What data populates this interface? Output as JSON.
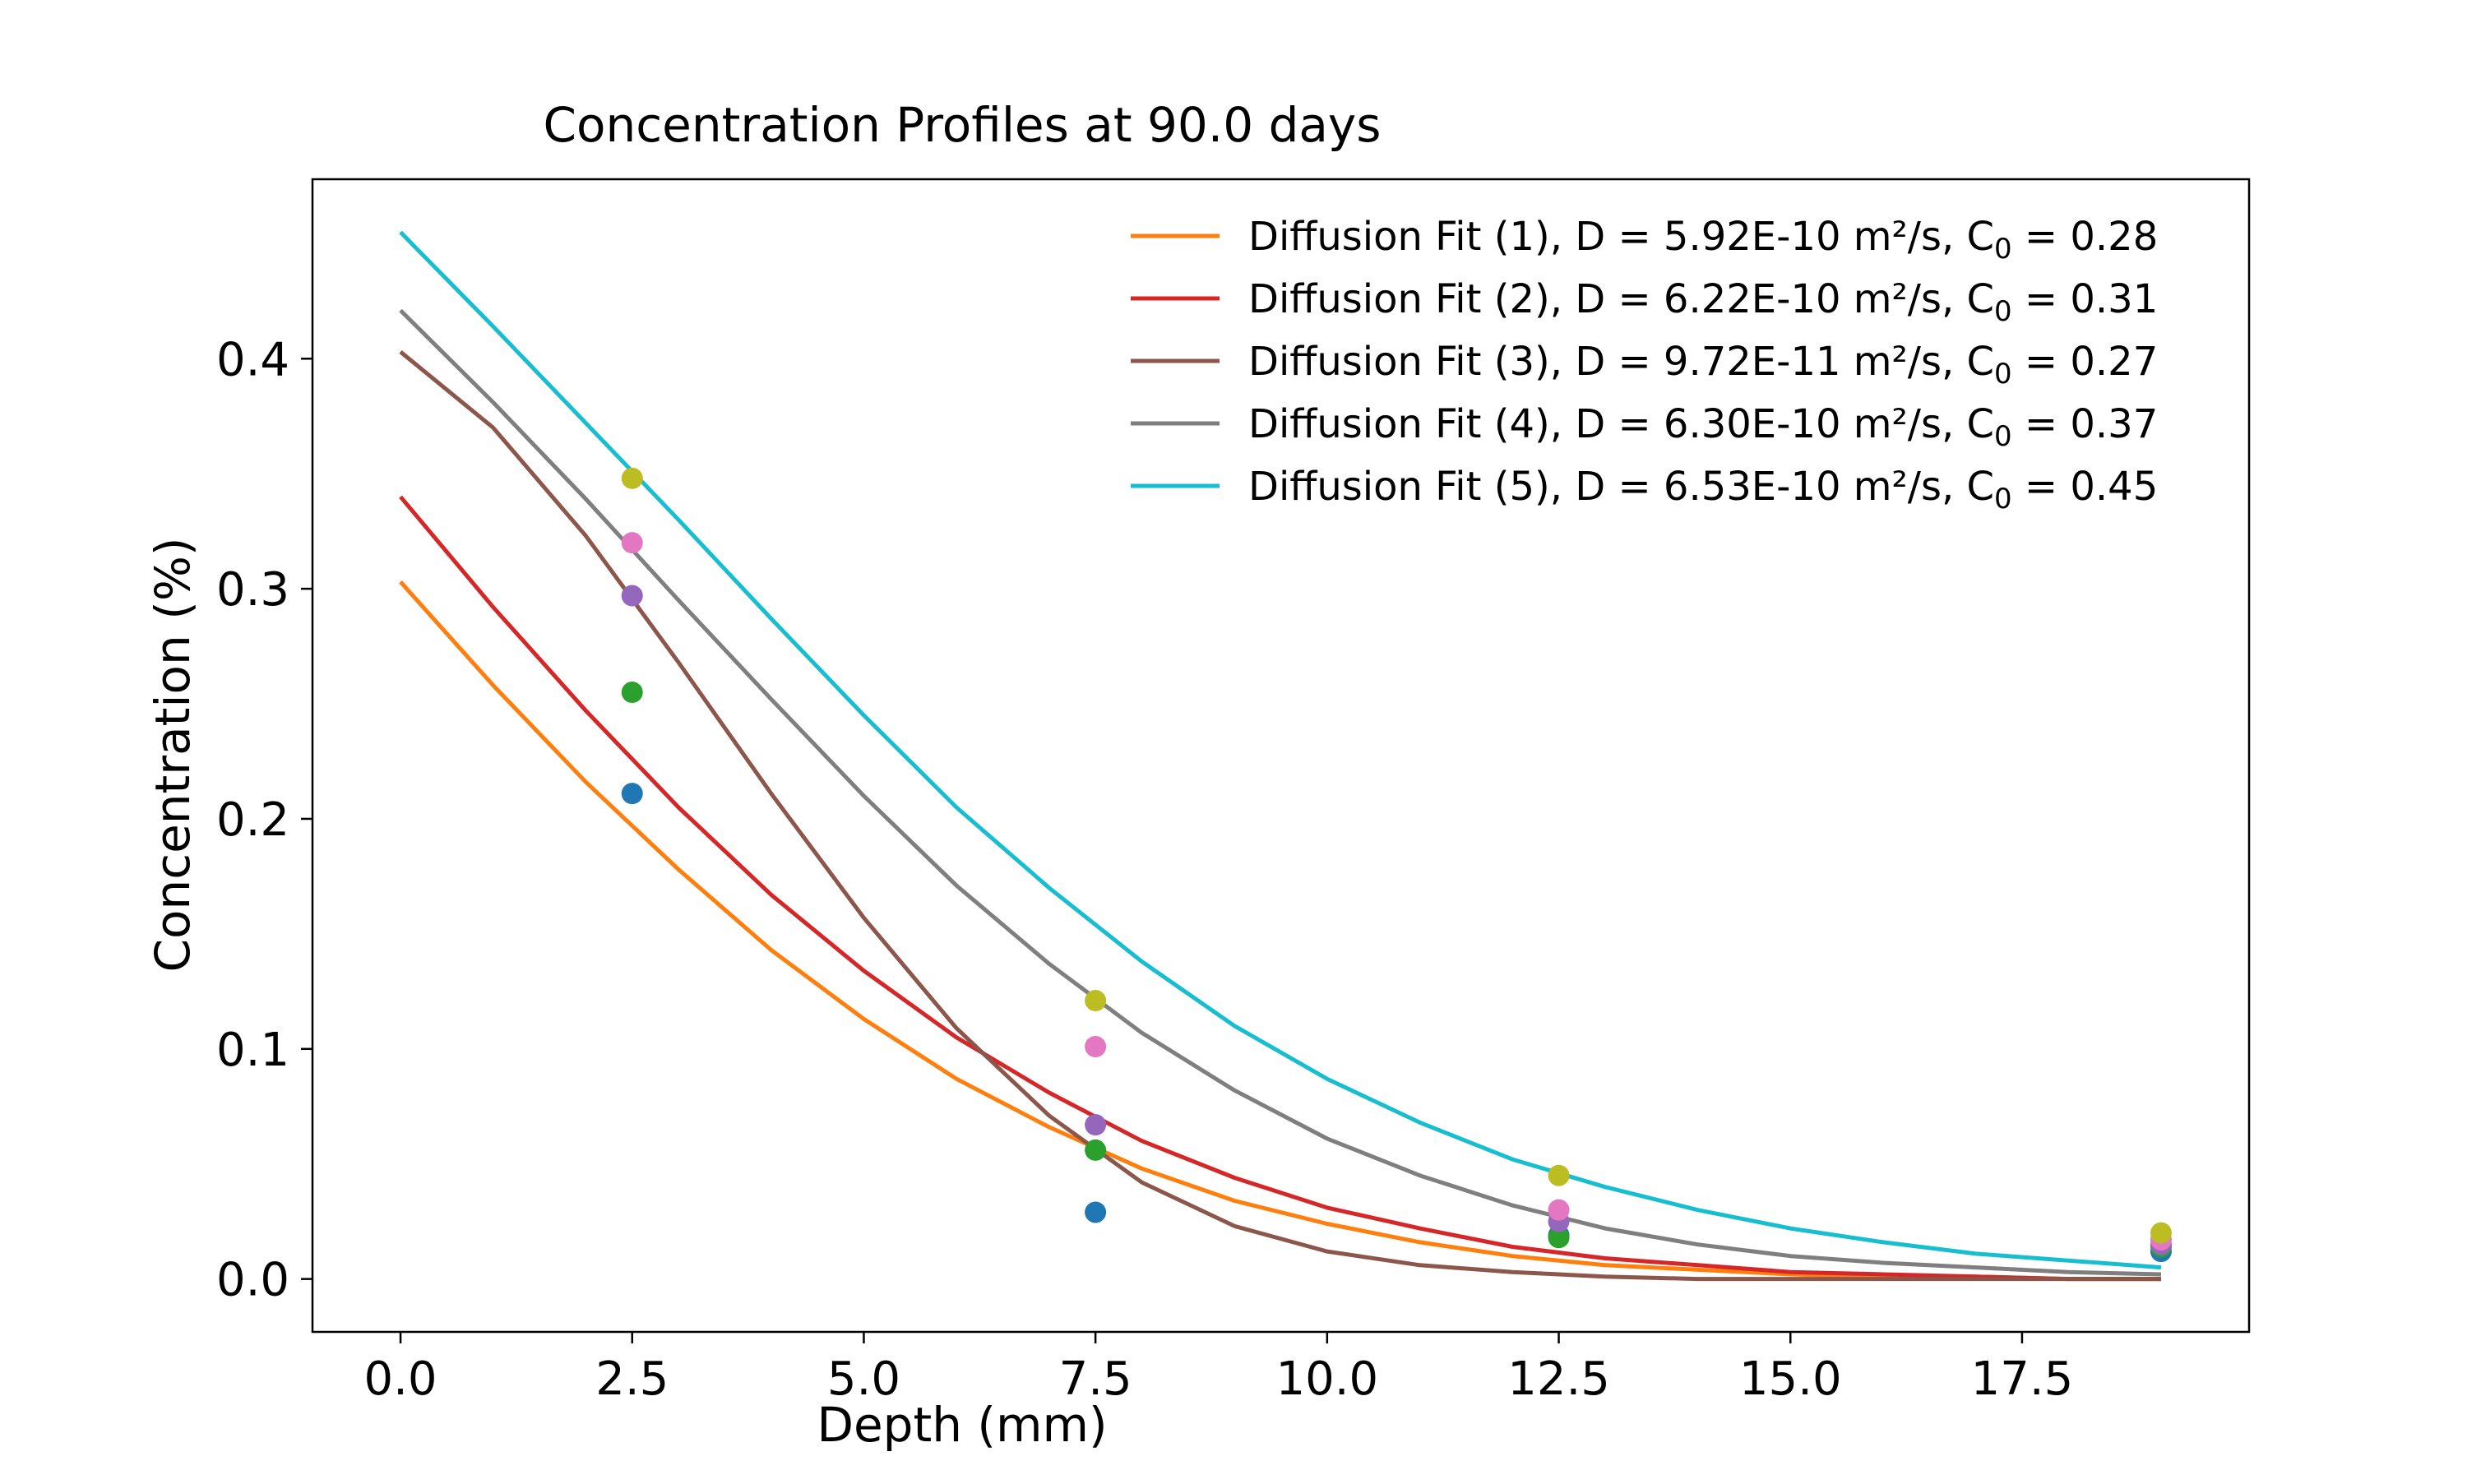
{
  "chart_data": {
    "type": "line",
    "title": "Concentration Profiles at 90.0 days",
    "xlabel": "Depth (mm)",
    "ylabel": "Concentration (%)",
    "xlim": [
      -0.95,
      19.95
    ],
    "ylim": [
      -0.023,
      0.478
    ],
    "xticks": [
      0.0,
      2.5,
      5.0,
      7.5,
      10.0,
      12.5,
      15.0,
      17.5
    ],
    "xtick_labels": [
      "0.0",
      "2.5",
      "5.0",
      "7.5",
      "10.0",
      "12.5",
      "15.0",
      "17.5"
    ],
    "yticks": [
      0.0,
      0.1,
      0.2,
      0.3,
      0.4
    ],
    "ytick_labels": [
      "0.0",
      "0.1",
      "0.2",
      "0.3",
      "0.4"
    ],
    "grid": false,
    "legend_position": "top-right",
    "series": [
      {
        "name": "Diffusion Fit (1), D = 5.92E-10 m²/s, C₀ = 0.28",
        "legend": {
          "prefix": "Diffusion Fit (1), D = 5.92E-10 m²/s, C",
          "subscript": "0",
          "suffix": " = 0.28"
        },
        "color": "#ff7f0e",
        "x": [
          0,
          1,
          2,
          3,
          4,
          5,
          6,
          7,
          8,
          9,
          10,
          11,
          12,
          13,
          14,
          15,
          16,
          17,
          18,
          19
        ],
        "y": [
          0.303,
          0.258,
          0.216,
          0.178,
          0.143,
          0.113,
          0.087,
          0.066,
          0.048,
          0.034,
          0.024,
          0.016,
          0.01,
          0.006,
          0.004,
          0.002,
          0.001,
          0.001,
          0.0,
          0.0
        ]
      },
      {
        "name": "Diffusion Fit (2), D = 6.22E-10 m²/s, C₀ = 0.31",
        "legend": {
          "prefix": "Diffusion Fit (2), D = 6.22E-10 m²/s, C",
          "subscript": "0",
          "suffix": " = 0.31"
        },
        "color": "#d62728",
        "x": [
          0,
          1,
          2,
          3,
          4,
          5,
          6,
          7,
          8,
          9,
          10,
          11,
          12,
          13,
          14,
          15,
          16,
          17,
          18,
          19
        ],
        "y": [
          0.34,
          0.292,
          0.247,
          0.205,
          0.167,
          0.134,
          0.105,
          0.081,
          0.06,
          0.044,
          0.031,
          0.022,
          0.014,
          0.009,
          0.006,
          0.003,
          0.002,
          0.001,
          0.0,
          0.0
        ]
      },
      {
        "name": "Diffusion Fit (3), D = 9.72E-11 m²/s, C₀ = 0.27",
        "legend": {
          "prefix": "Diffusion Fit (3), D = 9.72E-11 m²/s, C",
          "subscript": "0",
          "suffix": " = 0.27"
        },
        "color": "#8c564b",
        "x": [
          0,
          1,
          2,
          3,
          4,
          5,
          6,
          7,
          8,
          9,
          10,
          11,
          12,
          13,
          14,
          15,
          16,
          17,
          18,
          19
        ],
        "y": [
          0.403,
          0.37,
          0.323,
          0.268,
          0.211,
          0.157,
          0.109,
          0.071,
          0.042,
          0.023,
          0.012,
          0.006,
          0.003,
          0.001,
          0.0,
          0.0,
          0.0,
          0.0,
          0.0,
          0.0
        ]
      },
      {
        "name": "Diffusion Fit (4), D = 6.30E-10 m²/s, C₀ = 0.37",
        "legend": {
          "prefix": "Diffusion Fit (4), D = 6.30E-10 m²/s, C",
          "subscript": "0",
          "suffix": " = 0.37"
        },
        "color": "#7f7f7f",
        "x": [
          0,
          1,
          2,
          3,
          4,
          5,
          6,
          7,
          8,
          9,
          10,
          11,
          12,
          13,
          14,
          15,
          16,
          17,
          18,
          19
        ],
        "y": [
          0.421,
          0.381,
          0.339,
          0.295,
          0.252,
          0.21,
          0.171,
          0.137,
          0.107,
          0.082,
          0.061,
          0.045,
          0.032,
          0.022,
          0.015,
          0.01,
          0.007,
          0.005,
          0.003,
          0.002
        ]
      },
      {
        "name": "Diffusion Fit (5), D = 6.53E-10 m²/s, C₀ = 0.45",
        "legend": {
          "prefix": "Diffusion Fit (5), D = 6.53E-10 m²/s, C",
          "subscript": "0",
          "suffix": " = 0.45"
        },
        "color": "#17becf",
        "x": [
          0,
          1,
          2,
          3,
          4,
          5,
          6,
          7,
          8,
          9,
          10,
          11,
          12,
          13,
          14,
          15,
          16,
          17,
          18,
          19
        ],
        "y": [
          0.455,
          0.414,
          0.372,
          0.33,
          0.287,
          0.245,
          0.205,
          0.17,
          0.138,
          0.11,
          0.087,
          0.068,
          0.052,
          0.04,
          0.03,
          0.022,
          0.016,
          0.011,
          0.008,
          0.005
        ]
      }
    ],
    "scatter_series": [
      {
        "color": "#1f77b4",
        "x": [
          2.5,
          7.5,
          12.5,
          19
        ],
        "y": [
          0.211,
          0.029,
          0.019,
          0.012
        ]
      },
      {
        "color": "#2ca02c",
        "x": [
          2.5,
          7.5,
          12.5,
          19
        ],
        "y": [
          0.255,
          0.056,
          0.018,
          0.014
        ]
      },
      {
        "color": "#9467bd",
        "x": [
          2.5,
          7.5,
          12.5,
          19
        ],
        "y": [
          0.297,
          0.067,
          0.025,
          0.015
        ]
      },
      {
        "color": "#e377c2",
        "x": [
          2.5,
          7.5,
          12.5,
          19
        ],
        "y": [
          0.32,
          0.101,
          0.03,
          0.017
        ]
      },
      {
        "color": "#bcbd22",
        "x": [
          2.5,
          7.5,
          12.5,
          19
        ],
        "y": [
          0.348,
          0.121,
          0.045,
          0.02
        ]
      }
    ]
  }
}
